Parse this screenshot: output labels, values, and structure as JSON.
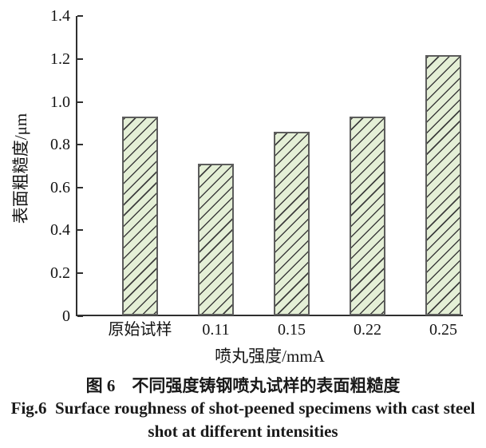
{
  "chart_data": {
    "type": "bar",
    "categories": [
      "原始试样",
      "0.11",
      "0.15",
      "0.22",
      "0.25"
    ],
    "values": [
      0.93,
      0.71,
      0.86,
      0.93,
      1.22
    ],
    "title": "",
    "xlabel": "喷丸强度/mmA",
    "ylabel": "表面粗糙度/μm",
    "ylim": [
      0,
      1.4
    ],
    "ytick_labels": [
      "0",
      "0.2",
      "0.4",
      "0.6",
      "0.8",
      "1.0",
      "1.2",
      "1.4"
    ],
    "grid": "off",
    "legend": "none",
    "bar_fill_color": "#e4efd6",
    "bar_hatch": "/",
    "bar_hatch_color": "#3e3e3e",
    "bar_border_color": "#5d5d5d",
    "axis_color": "#2f2f2f"
  },
  "caption": {
    "zh": "图 6　不同强度铸钢喷丸试样的表面粗糙度",
    "en_line1": "Fig.6  Surface roughness of shot-peened specimens with cast steel",
    "en_line2": "shot at different intensities"
  }
}
